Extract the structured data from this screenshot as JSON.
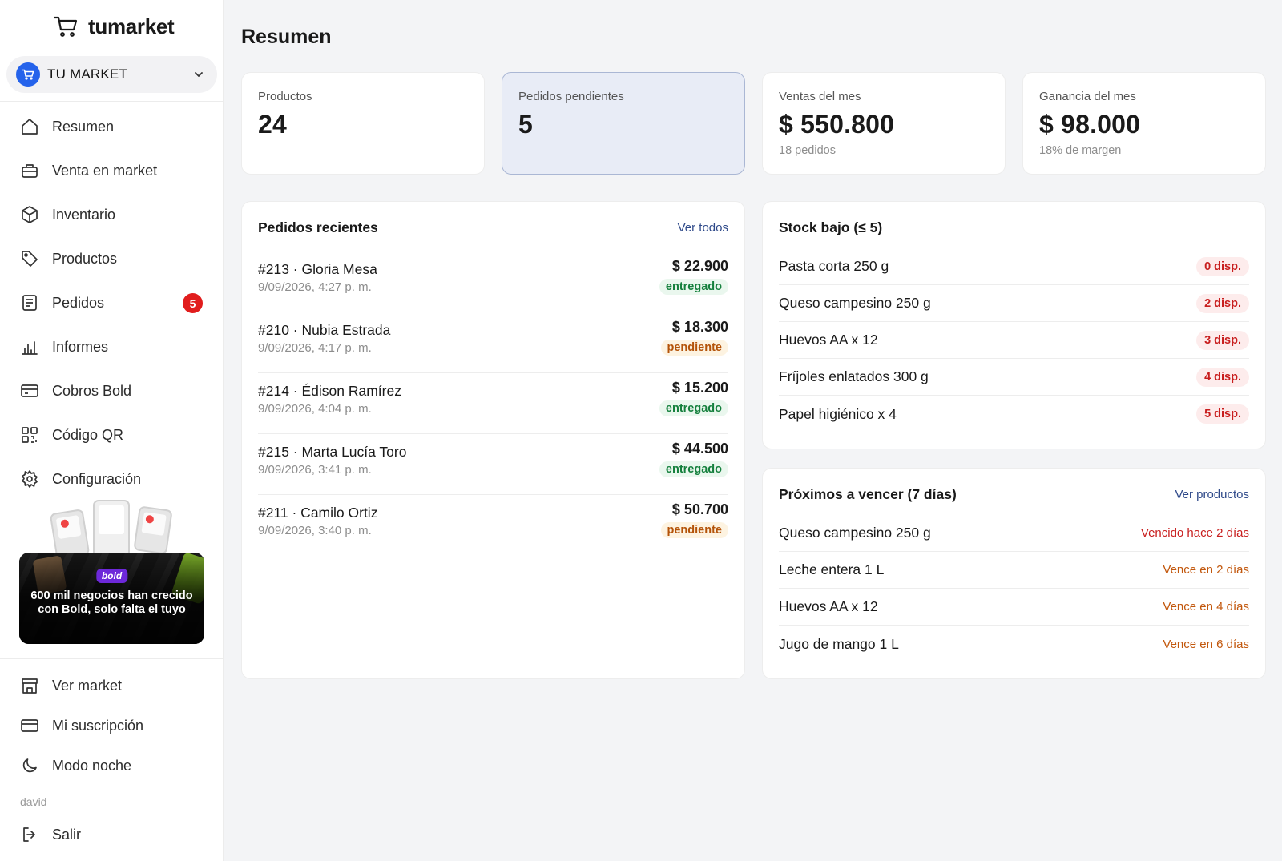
{
  "app": {
    "logo": "tumarket"
  },
  "store": {
    "name": "TU MARKET"
  },
  "nav": [
    {
      "label": "Resumen",
      "icon": "home-icon"
    },
    {
      "label": "Venta en market",
      "icon": "register-icon"
    },
    {
      "label": "Inventario",
      "icon": "box-icon"
    },
    {
      "label": "Productos",
      "icon": "tag-icon"
    },
    {
      "label": "Pedidos",
      "icon": "document-icon",
      "badge": "5"
    },
    {
      "label": "Informes",
      "icon": "bar-chart-icon"
    },
    {
      "label": "Cobros Bold",
      "icon": "credit-card-icon"
    },
    {
      "label": "Código QR",
      "icon": "qr-code-icon"
    },
    {
      "label": "Configuración",
      "icon": "gear-icon"
    }
  ],
  "promo": {
    "brand": "bold",
    "text": "600 mil negocios han crecido con Bold, solo falta el tuyo"
  },
  "bottom_nav": [
    {
      "label": "Ver market",
      "icon": "store-icon"
    },
    {
      "label": "Mi suscripción",
      "icon": "card-icon"
    },
    {
      "label": "Modo noche",
      "icon": "moon-icon"
    }
  ],
  "user": {
    "name": "david",
    "logout": "Salir"
  },
  "page": {
    "title": "Resumen"
  },
  "stats": [
    {
      "label": "Productos",
      "value": "24",
      "sub": ""
    },
    {
      "label": "Pedidos pendientes",
      "value": "5",
      "sub": ""
    },
    {
      "label": "Ventas del mes",
      "value": "$ 550.800",
      "sub": "18 pedidos"
    },
    {
      "label": "Ganancia del mes",
      "value": "$ 98.000",
      "sub": "18% de margen"
    }
  ],
  "recent_orders": {
    "title": "Pedidos recientes",
    "link": "Ver todos",
    "items": [
      {
        "name": "#213 · Gloria Mesa",
        "date": "9/09/2026, 4:27 p. m.",
        "amount": "$ 22.900",
        "status": "entregado"
      },
      {
        "name": "#210 · Nubia Estrada",
        "date": "9/09/2026, 4:17 p. m.",
        "amount": "$ 18.300",
        "status": "pendiente"
      },
      {
        "name": "#214 · Édison Ramírez",
        "date": "9/09/2026, 4:04 p. m.",
        "amount": "$ 15.200",
        "status": "entregado"
      },
      {
        "name": "#215 · Marta Lucía Toro",
        "date": "9/09/2026, 3:41 p. m.",
        "amount": "$ 44.500",
        "status": "entregado"
      },
      {
        "name": "#211 · Camilo Ortiz",
        "date": "9/09/2026, 3:40 p. m.",
        "amount": "$ 50.700",
        "status": "pendiente"
      }
    ]
  },
  "low_stock": {
    "title": "Stock bajo (≤ 5)",
    "items": [
      {
        "name": "Pasta corta 250 g",
        "stock": "0 disp."
      },
      {
        "name": "Queso campesino 250 g",
        "stock": "2 disp."
      },
      {
        "name": "Huevos AA x 12",
        "stock": "3 disp."
      },
      {
        "name": "Fríjoles enlatados 300 g",
        "stock": "4 disp."
      },
      {
        "name": "Papel higiénico x 4",
        "stock": "5 disp."
      }
    ]
  },
  "expiring": {
    "title": "Próximos a vencer (7 días)",
    "link": "Ver productos",
    "items": [
      {
        "name": "Queso campesino 250 g",
        "status": "Vencido hace 2 días",
        "level": "expired"
      },
      {
        "name": "Leche entera 1 L",
        "status": "Vence en 2 días",
        "level": "soon"
      },
      {
        "name": "Huevos AA x 12",
        "status": "Vence en 4 días",
        "level": "soon"
      },
      {
        "name": "Jugo de mango 1 L",
        "status": "Vence en 6 días",
        "level": "soon"
      }
    ]
  },
  "colors": {
    "accent": "#2563eb",
    "badge": "#e11d1d",
    "ok": "#15803d",
    "pending": "#b45309",
    "danger": "#c81e1e",
    "warning": "#c2570c",
    "link": "#2f4a8a"
  }
}
